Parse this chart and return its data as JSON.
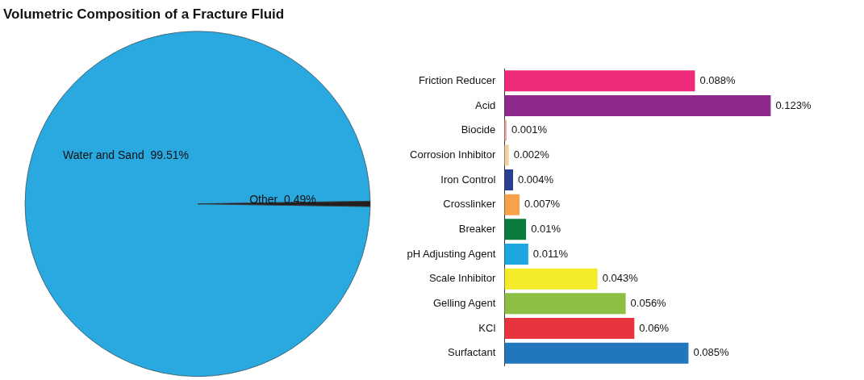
{
  "chart_data": [
    {
      "type": "pie",
      "title": "Volumetric Composition of a Fracture Fluid",
      "categories": [
        "Water and Sand",
        "Other"
      ],
      "values": [
        99.51,
        0.49
      ],
      "colors": [
        "#29a9e0",
        "#231f20"
      ],
      "value_labels": [
        "99.51%",
        "0.49%"
      ]
    },
    {
      "type": "bar",
      "orientation": "horizontal",
      "tick_labels": "y",
      "categories": [
        "Friction Reducer",
        "Acid",
        "Biocide",
        "Corrosion Inhibitor",
        "Iron Control",
        "Crosslinker",
        "Breaker",
        "pH Adjusting Agent",
        "Scale Inhibitor",
        "Gelling Agent",
        "KCl",
        "Surfactant"
      ],
      "values": [
        0.088,
        0.123,
        0.001,
        0.002,
        0.004,
        0.007,
        0.01,
        0.011,
        0.043,
        0.056,
        0.06,
        0.085
      ],
      "colors": [
        "#ee2a7b",
        "#8e2a8c",
        "#f4a9a0",
        "#f6d0a0",
        "#2a3f8f",
        "#f7a24b",
        "#0a7a3e",
        "#1ca6df",
        "#f4ec2a",
        "#8dbf44",
        "#e7343f",
        "#2276bb"
      ],
      "value_labels": [
        "0.088%",
        "0.123%",
        "0.001%",
        "0.002%",
        "0.004%",
        "0.007%",
        "0.01%",
        "0.011%",
        "0.043%",
        "0.056%",
        "0.06%",
        "0.085%"
      ]
    }
  ]
}
